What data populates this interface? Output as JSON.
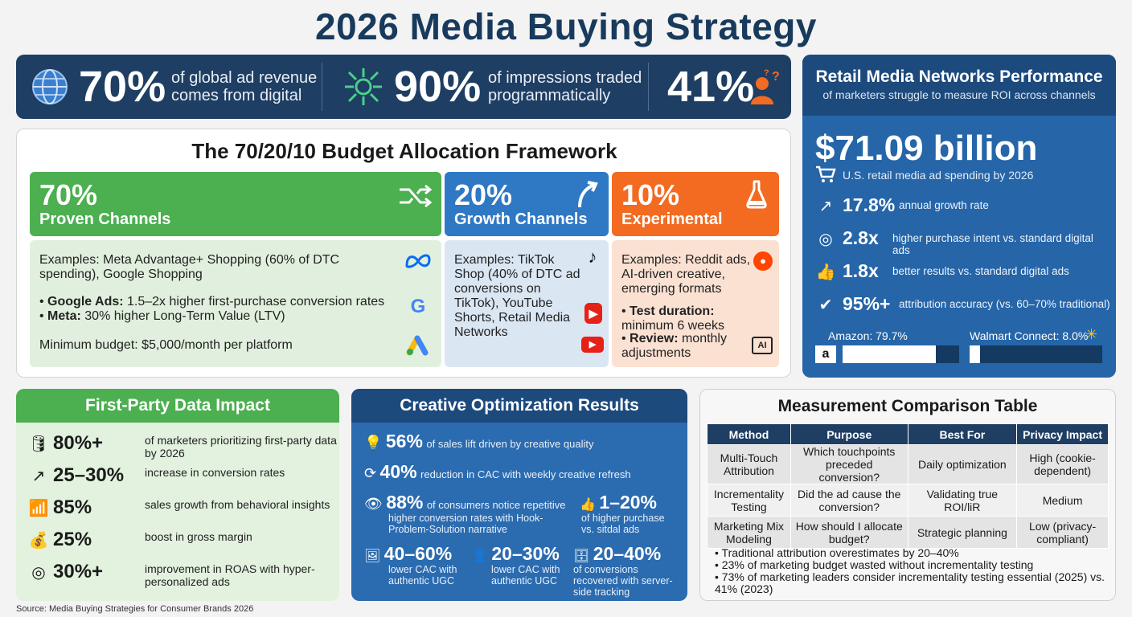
{
  "title": "2026 Media Buying Strategy",
  "stats": [
    {
      "value": "70%",
      "text_line1": "of global ad revenue",
      "text_line2": "comes from digital",
      "icon": "globe-icon"
    },
    {
      "value": "90%",
      "text_line1": "of impressions traded",
      "text_line2": "programmatically",
      "icon": "network-icon"
    },
    {
      "value": "41%",
      "icon": "person-question-icon"
    }
  ],
  "budget": {
    "title": "The 70/20/10 Budget Allocation Framework",
    "proven": {
      "pct": "70%",
      "label": "Proven Channels",
      "examples": "Examples: Meta Advantage+ Shopping (60% of DTC spending), Google Shopping",
      "bullet1_bold": "Google Ads:",
      "bullet1_text": " 1.5–2x higher first-purchase conversion rates",
      "bullet2_bold": "Meta:",
      "bullet2_text": " 30% higher Long-Term Value (LTV)",
      "minimum": "Minimum budget: $5,000/month per platform",
      "color": "#4caf50"
    },
    "growth": {
      "pct": "20%",
      "label": "Growth Channels",
      "examples": "Examples: TikTok Shop (40% of DTC ad conversions on TikTok), YouTube Shorts, Retail Media Networks",
      "color": "#2f78c4"
    },
    "experimental": {
      "pct": "10%",
      "label": "Experimental",
      "examples": "Examples: Reddit ads, AI-driven creative, emerging formats",
      "bullet1_bold": "Test duration:",
      "bullet1_text": " minimum 6 weeks",
      "bullet2_bold": "Review:",
      "bullet2_text": " monthly adjustments",
      "color": "#f26b21"
    }
  },
  "retail": {
    "title": "Retail Media Networks Performance",
    "subtitle": "of marketers struggle to measure ROI across channels",
    "big_value": "$71.09 billion",
    "big_caption": "U.S. retail media ad spending by 2026",
    "rows": [
      {
        "icon": "trend-up-icon",
        "value": "17.8%",
        "text": "annual growth rate"
      },
      {
        "icon": "target-icon",
        "value": "2.8x",
        "text": "higher purchase intent vs. standard digital ads"
      },
      {
        "icon": "thumbs-up-icon",
        "value": "1.8x",
        "text": "better results vs. standard digital ads"
      },
      {
        "icon": "check-badge-icon",
        "value": "95%+",
        "text": "attribution accuracy (vs. 60–70% traditional)"
      }
    ],
    "amazon_label": "Amazon: 79.7%",
    "amazon_share": 79.7,
    "walmart_label": "Walmart Connect: 8.0%",
    "walmart_share": 8.0
  },
  "first_party": {
    "title": "First-Party Data Impact",
    "rows": [
      {
        "icon": "database-icon",
        "value": "80%+",
        "text": "of marketers prioritizing first-party data by 2026"
      },
      {
        "icon": "trend-up-icon",
        "value": "25–30%",
        "text": "increase in conversion rates"
      },
      {
        "icon": "bar-growth-icon",
        "value": "85%",
        "text": "sales growth from behavioral insights"
      },
      {
        "icon": "money-bag-icon",
        "value": "25%",
        "text": "boost in gross margin"
      },
      {
        "icon": "target-icon",
        "value": "30%+",
        "text": "improvement in ROAS with hyper-personalized ads"
      }
    ]
  },
  "creative": {
    "title": "Creative Optimization Results",
    "r1_value": "56%",
    "r1_text": "of sales lift driven by creative quality",
    "r2_value": "40%",
    "r2_text": "reduction in CAC with weekly creative refresh",
    "r3_value": "88%",
    "r3_text": "of consumers notice repetitive",
    "r3_sub": "higher conversion rates with Hook-Problem-Solution narrative",
    "r4_value": "1–20%",
    "r4_sub": "of higher purchase vs. sitdal ads",
    "r5_value": "40–60%",
    "r5_sub": "lower CAC with authentic UGC",
    "r6_value": "20–30%",
    "r6_sub": "lower CAC with authentic UGC",
    "r7_value": "20–40%",
    "r7_sub": "of conversions recovered with server-side tracking"
  },
  "measurement": {
    "title": "Measurement Comparison Table",
    "headers": [
      "Method",
      "Purpose",
      "Best For",
      "Privacy Impact"
    ],
    "rows": [
      [
        "Multi-Touch Attribution",
        "Which touchpoints preceded conversion?",
        "Daily optimization",
        "High (cookie-dependent)"
      ],
      [
        "Incrementality Testing",
        "Did the ad cause the conversion?",
        "Validating true ROI/liR",
        "Medium"
      ],
      [
        "Marketing Mix Modeling",
        "How should I allocate budget?",
        "Strategic planning",
        "Low (privacy-compliant)"
      ]
    ],
    "notes": [
      "Traditional attribution overestimates by 20–40%",
      "23% of marketing budget wasted without incrementality testing",
      "73% of marketing leaders consider incrementality testing essential (2025) vs. 41% (2023)"
    ]
  },
  "source": "Source: Media Buying Strategies for Consumer Brands 2026"
}
